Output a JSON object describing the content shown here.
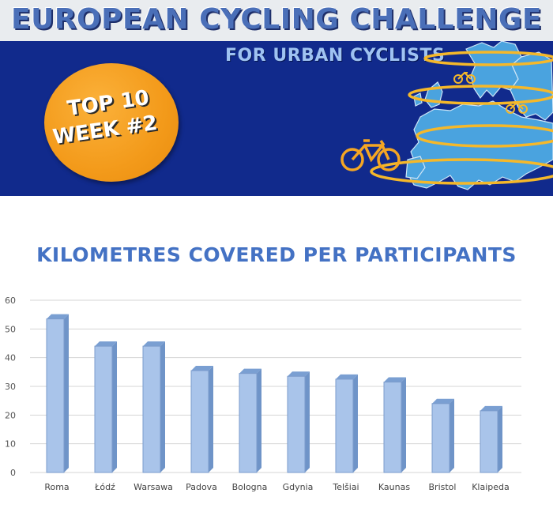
{
  "header": {
    "title": "European Cycling Challenge",
    "subtitle": "For Urban Cyclists",
    "badge_line1": "Top 10",
    "badge_line2": "Week #2"
  },
  "colors": {
    "header_blue": "#112a8c",
    "title_blue": "#4a6fb8",
    "badge_orange": "#f39a1a",
    "map_light_blue": "#4aa3df",
    "ring_gold": "#f5b82a",
    "bar_fill": "#a9c4ea",
    "bar_edge": "#6f94c8",
    "chart_title": "#4472c4"
  },
  "chart_data": {
    "type": "bar",
    "title": "Kilometres covered per participants",
    "categories": [
      "Roma",
      "Łódź",
      "Warsawa",
      "Padova",
      "Bologna",
      "Gdynia",
      "Telšiai",
      "Kaunas",
      "Bristol",
      "Klaipeda"
    ],
    "values": [
      53.5,
      44,
      44,
      35.5,
      34.5,
      33.5,
      32.5,
      31.5,
      24,
      21.5
    ],
    "xlabel": "",
    "ylabel": "",
    "ylim": [
      0,
      60
    ],
    "yticks": [
      0,
      10,
      20,
      30,
      40,
      50,
      60
    ],
    "grid": true,
    "style": "3d-column"
  }
}
